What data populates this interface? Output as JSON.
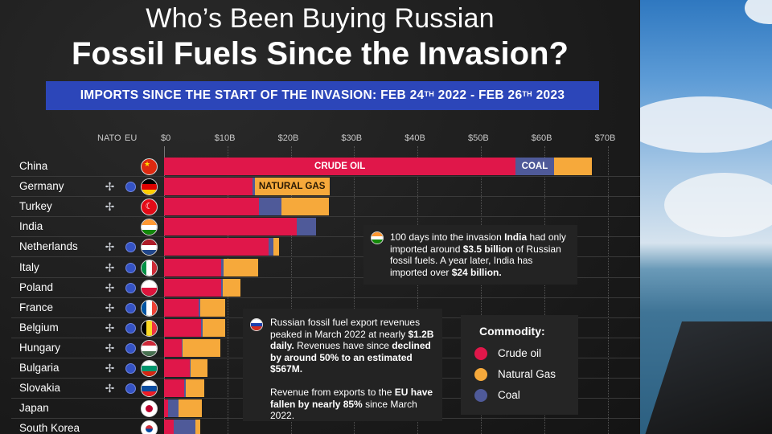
{
  "title_line1": "Who’s Been Buying Russian",
  "title_line2": "Fossil Fuels Since the Invasion?",
  "banner": {
    "text_a": "IMPORTS SINCE THE START OF THE INVASION:  FEB 24",
    "sup1": "TH",
    "text_b": " 2022 - FEB 26",
    "sup2": "TH",
    "text_c": " 2023"
  },
  "column_headers": {
    "nato": "NATO",
    "eu": "EU"
  },
  "colors": {
    "crude_oil": "#e0174a",
    "natural_gas": "#f6a93b",
    "coal": "#4f5a99",
    "banner": "#2c46b9"
  },
  "chart_data": {
    "type": "bar",
    "orientation": "horizontal",
    "stacked": true,
    "x_ticks": [
      "$0",
      "$10B",
      "$20B",
      "$30B",
      "$40B",
      "$50B",
      "$60B",
      "$70B"
    ],
    "xlim": [
      0,
      70
    ],
    "unit": "billion USD",
    "categories": [
      "China",
      "Germany",
      "Turkey",
      "India",
      "Netherlands",
      "Italy",
      "Poland",
      "France",
      "Belgium",
      "Hungary",
      "Bulgaria",
      "Slovakia",
      "Japan",
      "South Korea"
    ],
    "series": [
      {
        "name": "Crude oil",
        "values": [
          55.5,
          14.0,
          15.0,
          21.0,
          16.5,
          9.0,
          9.0,
          5.5,
          5.8,
          2.8,
          4.0,
          3.2,
          0.6,
          1.5
        ]
      },
      {
        "name": "Coal",
        "values": [
          6.0,
          0.3,
          3.5,
          3.0,
          0.8,
          0.4,
          0.3,
          0.2,
          0.3,
          0.1,
          0.2,
          0.2,
          1.7,
          3.4
        ]
      },
      {
        "name": "Natural Gas",
        "values": [
          6.0,
          11.8,
          7.5,
          0.0,
          0.8,
          5.5,
          2.8,
          4.0,
          3.5,
          6.0,
          2.6,
          3.0,
          3.7,
          0.8
        ]
      }
    ],
    "segment_labels": [
      {
        "category": "China",
        "series": "Crude oil",
        "text": "CRUDE OIL"
      },
      {
        "category": "China",
        "series": "Coal",
        "text": "COAL"
      },
      {
        "category": "Germany",
        "series": "Natural Gas",
        "text": "NATURAL GAS"
      }
    ],
    "nato": [
      false,
      true,
      true,
      false,
      true,
      true,
      true,
      true,
      true,
      true,
      true,
      true,
      false,
      false
    ],
    "eu": [
      false,
      true,
      false,
      false,
      true,
      true,
      true,
      true,
      true,
      true,
      true,
      true,
      false,
      false
    ]
  },
  "notes": {
    "india": {
      "p1": "100 days into the invasion ",
      "b1": "India",
      "p2": " had only imported around ",
      "b2": "$3.5 billion",
      "p3": " of Russian fossil fuels. A year later, India has imported over ",
      "b3": "$24 billion."
    },
    "russia": {
      "p1": "Russian fossil fuel export revenues peaked in March 2022 at nearly ",
      "b1": "$1.2B daily.",
      "p2": " Revenues have since ",
      "b2": "declined by around 50% to an estimated $567M.",
      "p3": "Revenue from exports to the ",
      "b3": "EU have fallen by nearly 85%",
      "p4": " since March 2022."
    }
  },
  "legend": {
    "title": "Commodity:",
    "items": [
      "Crude oil",
      "Natural Gas",
      "Coal"
    ]
  }
}
